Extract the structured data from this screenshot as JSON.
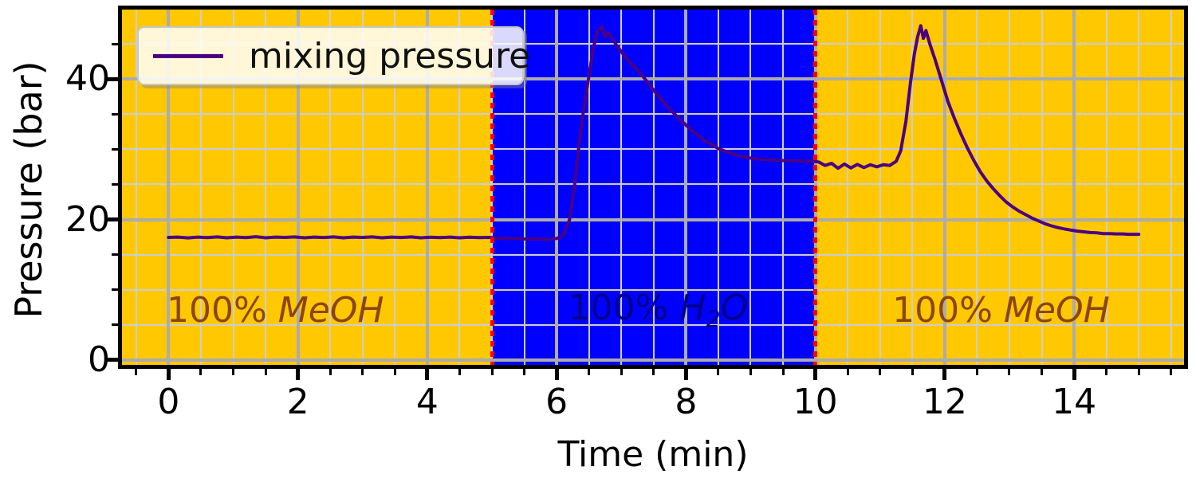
{
  "chart_data": {
    "type": "line",
    "xlabel": "Time (min)",
    "ylabel": "Pressure (bar)",
    "xlim": [
      -0.72,
      15.7
    ],
    "ylim": [
      -0.7,
      49.9
    ],
    "x_major_ticks": [
      0,
      2,
      4,
      6,
      8,
      10,
      12,
      14
    ],
    "x_minor_step": 0.5,
    "y_major_ticks": [
      0,
      20,
      40
    ],
    "y_minor_step": 5,
    "grid": true,
    "colors": {
      "meoh_region": "#FFC800",
      "h2o_region": "#0000FF",
      "line": "#4B0082",
      "vline": "#FF0000",
      "major_grid": "#ACACAC",
      "minor_grid": "#CDCDCD",
      "meoh_text": "#8B4513",
      "h2o_text": "#00008B"
    },
    "regions": [
      {
        "name": "meoh-1",
        "x_start": -0.72,
        "x_end": 5,
        "color": "#FFC800"
      },
      {
        "name": "h2o",
        "x_start": 5,
        "x_end": 10,
        "color": "#0000FF"
      },
      {
        "name": "meoh-2",
        "x_start": 10,
        "x_end": 15.7,
        "color": "#FFC800"
      }
    ],
    "vlines": [
      {
        "x": 5,
        "color": "#FF0000",
        "style": "dotted"
      },
      {
        "x": 10,
        "color": "#FF0000",
        "style": "dotted"
      }
    ],
    "annotations": [
      {
        "prefix": "100% ",
        "formula": "MeOH",
        "sub": "",
        "formula2": "",
        "x": 1.65,
        "y": 7.0,
        "color": "#8B4513"
      },
      {
        "prefix": "100% ",
        "formula": "H",
        "sub": "2",
        "formula2": "O",
        "x": 7.57,
        "y": 7.0,
        "color": "#00008B"
      },
      {
        "prefix": "100% ",
        "formula": "MeOH",
        "sub": "",
        "formula2": "",
        "x": 12.87,
        "y": 7.0,
        "color": "#8B4513"
      }
    ],
    "legend": {
      "position": "upper left",
      "entries": [
        {
          "label": "mixing pressure",
          "color": "#4B0082"
        }
      ]
    },
    "series": [
      {
        "name": "mixing pressure",
        "color": "#4B0082",
        "points": [
          [
            0,
            17.45
          ],
          [
            0.15,
            17.5
          ],
          [
            0.3,
            17.38
          ],
          [
            0.45,
            17.5
          ],
          [
            0.6,
            17.42
          ],
          [
            0.75,
            17.52
          ],
          [
            0.9,
            17.4
          ],
          [
            1.05,
            17.5
          ],
          [
            1.2,
            17.42
          ],
          [
            1.35,
            17.55
          ],
          [
            1.5,
            17.4
          ],
          [
            1.65,
            17.5
          ],
          [
            1.8,
            17.45
          ],
          [
            1.95,
            17.52
          ],
          [
            2.1,
            17.4
          ],
          [
            2.25,
            17.5
          ],
          [
            2.4,
            17.44
          ],
          [
            2.55,
            17.52
          ],
          [
            2.7,
            17.4
          ],
          [
            2.85,
            17.5
          ],
          [
            3.0,
            17.45
          ],
          [
            3.15,
            17.52
          ],
          [
            3.3,
            17.4
          ],
          [
            3.45,
            17.5
          ],
          [
            3.6,
            17.44
          ],
          [
            3.75,
            17.52
          ],
          [
            3.9,
            17.4
          ],
          [
            4.05,
            17.48
          ],
          [
            4.2,
            17.42
          ],
          [
            4.35,
            17.5
          ],
          [
            4.5,
            17.4
          ],
          [
            4.65,
            17.48
          ],
          [
            4.8,
            17.42
          ],
          [
            4.95,
            17.45
          ],
          [
            5.1,
            17.35
          ],
          [
            5.25,
            17.28
          ],
          [
            5.4,
            17.32
          ],
          [
            5.55,
            17.2
          ],
          [
            5.7,
            17.25
          ],
          [
            5.85,
            17.15
          ],
          [
            6.0,
            17.3
          ],
          [
            6.1,
            17.7
          ],
          [
            6.2,
            20.0
          ],
          [
            6.28,
            25.0
          ],
          [
            6.35,
            31.0
          ],
          [
            6.42,
            35.8
          ],
          [
            6.5,
            40.5
          ],
          [
            6.57,
            44.5
          ],
          [
            6.63,
            46.8
          ],
          [
            6.7,
            47.5
          ],
          [
            6.75,
            46.0
          ],
          [
            6.8,
            46.6
          ],
          [
            6.87,
            45.6
          ],
          [
            6.95,
            44.5
          ],
          [
            7.1,
            42.7
          ],
          [
            7.3,
            40.8
          ],
          [
            7.5,
            38.4
          ],
          [
            7.7,
            36.2
          ],
          [
            7.9,
            34.3
          ],
          [
            8.1,
            32.6
          ],
          [
            8.3,
            31.2
          ],
          [
            8.5,
            30.1
          ],
          [
            8.7,
            29.4
          ],
          [
            8.9,
            28.9
          ],
          [
            9.1,
            28.6
          ],
          [
            9.3,
            28.5
          ],
          [
            9.5,
            28.4
          ],
          [
            9.7,
            28.35
          ],
          [
            9.9,
            28.3
          ],
          [
            10.05,
            28.2
          ],
          [
            10.15,
            27.7
          ],
          [
            10.25,
            28.0
          ],
          [
            10.35,
            27.3
          ],
          [
            10.45,
            27.9
          ],
          [
            10.55,
            27.35
          ],
          [
            10.65,
            27.85
          ],
          [
            10.75,
            27.4
          ],
          [
            10.85,
            27.8
          ],
          [
            10.95,
            27.5
          ],
          [
            11.05,
            27.8
          ],
          [
            11.15,
            27.7
          ],
          [
            11.25,
            28.3
          ],
          [
            11.32,
            29.8
          ],
          [
            11.4,
            34.0
          ],
          [
            11.47,
            39.5
          ],
          [
            11.53,
            43.5
          ],
          [
            11.58,
            46.0
          ],
          [
            11.63,
            47.6
          ],
          [
            11.67,
            45.8
          ],
          [
            11.71,
            46.9
          ],
          [
            11.77,
            45.0
          ],
          [
            11.85,
            42.8
          ],
          [
            11.95,
            39.8
          ],
          [
            12.05,
            36.8
          ],
          [
            12.15,
            34.4
          ],
          [
            12.25,
            32.2
          ],
          [
            12.35,
            30.2
          ],
          [
            12.45,
            28.4
          ],
          [
            12.55,
            26.8
          ],
          [
            12.65,
            25.5
          ],
          [
            12.75,
            24.4
          ],
          [
            12.85,
            23.4
          ],
          [
            12.95,
            22.5
          ],
          [
            13.05,
            21.8
          ],
          [
            13.15,
            21.2
          ],
          [
            13.25,
            20.7
          ],
          [
            13.35,
            20.2
          ],
          [
            13.45,
            19.8
          ],
          [
            13.55,
            19.4
          ],
          [
            13.65,
            19.1
          ],
          [
            13.75,
            18.85
          ],
          [
            13.85,
            18.65
          ],
          [
            13.95,
            18.5
          ],
          [
            14.05,
            18.35
          ],
          [
            14.15,
            18.25
          ],
          [
            14.25,
            18.15
          ],
          [
            14.35,
            18.1
          ],
          [
            14.45,
            18.0
          ],
          [
            14.55,
            18.0
          ],
          [
            14.65,
            17.95
          ],
          [
            14.75,
            17.95
          ],
          [
            14.85,
            17.9
          ],
          [
            14.95,
            17.9
          ],
          [
            15.0,
            17.9
          ]
        ]
      }
    ]
  }
}
